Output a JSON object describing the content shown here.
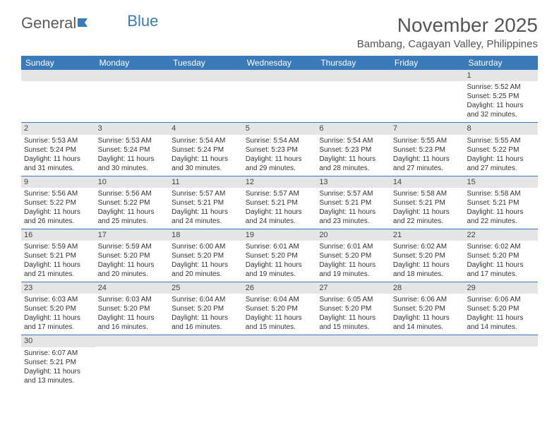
{
  "brand": {
    "part1": "General",
    "part2": "Blue"
  },
  "title": "November 2025",
  "location": "Bambang, Cagayan Valley, Philippines",
  "colors": {
    "header_bg": "#3a7ab8",
    "daynum_bg": "#e5e5e5",
    "border": "#3a7ab8",
    "text": "#333333",
    "title_text": "#555555"
  },
  "dayHeaders": [
    "Sunday",
    "Monday",
    "Tuesday",
    "Wednesday",
    "Thursday",
    "Friday",
    "Saturday"
  ],
  "weeks": [
    [
      {
        "n": "",
        "sr": "",
        "ss": "",
        "dl": ""
      },
      {
        "n": "",
        "sr": "",
        "ss": "",
        "dl": ""
      },
      {
        "n": "",
        "sr": "",
        "ss": "",
        "dl": ""
      },
      {
        "n": "",
        "sr": "",
        "ss": "",
        "dl": ""
      },
      {
        "n": "",
        "sr": "",
        "ss": "",
        "dl": ""
      },
      {
        "n": "",
        "sr": "",
        "ss": "",
        "dl": ""
      },
      {
        "n": "1",
        "sr": "Sunrise: 5:52 AM",
        "ss": "Sunset: 5:25 PM",
        "dl": "Daylight: 11 hours and 32 minutes."
      }
    ],
    [
      {
        "n": "2",
        "sr": "Sunrise: 5:53 AM",
        "ss": "Sunset: 5:24 PM",
        "dl": "Daylight: 11 hours and 31 minutes."
      },
      {
        "n": "3",
        "sr": "Sunrise: 5:53 AM",
        "ss": "Sunset: 5:24 PM",
        "dl": "Daylight: 11 hours and 30 minutes."
      },
      {
        "n": "4",
        "sr": "Sunrise: 5:54 AM",
        "ss": "Sunset: 5:24 PM",
        "dl": "Daylight: 11 hours and 30 minutes."
      },
      {
        "n": "5",
        "sr": "Sunrise: 5:54 AM",
        "ss": "Sunset: 5:23 PM",
        "dl": "Daylight: 11 hours and 29 minutes."
      },
      {
        "n": "6",
        "sr": "Sunrise: 5:54 AM",
        "ss": "Sunset: 5:23 PM",
        "dl": "Daylight: 11 hours and 28 minutes."
      },
      {
        "n": "7",
        "sr": "Sunrise: 5:55 AM",
        "ss": "Sunset: 5:23 PM",
        "dl": "Daylight: 11 hours and 27 minutes."
      },
      {
        "n": "8",
        "sr": "Sunrise: 5:55 AM",
        "ss": "Sunset: 5:22 PM",
        "dl": "Daylight: 11 hours and 27 minutes."
      }
    ],
    [
      {
        "n": "9",
        "sr": "Sunrise: 5:56 AM",
        "ss": "Sunset: 5:22 PM",
        "dl": "Daylight: 11 hours and 26 minutes."
      },
      {
        "n": "10",
        "sr": "Sunrise: 5:56 AM",
        "ss": "Sunset: 5:22 PM",
        "dl": "Daylight: 11 hours and 25 minutes."
      },
      {
        "n": "11",
        "sr": "Sunrise: 5:57 AM",
        "ss": "Sunset: 5:21 PM",
        "dl": "Daylight: 11 hours and 24 minutes."
      },
      {
        "n": "12",
        "sr": "Sunrise: 5:57 AM",
        "ss": "Sunset: 5:21 PM",
        "dl": "Daylight: 11 hours and 24 minutes."
      },
      {
        "n": "13",
        "sr": "Sunrise: 5:57 AM",
        "ss": "Sunset: 5:21 PM",
        "dl": "Daylight: 11 hours and 23 minutes."
      },
      {
        "n": "14",
        "sr": "Sunrise: 5:58 AM",
        "ss": "Sunset: 5:21 PM",
        "dl": "Daylight: 11 hours and 22 minutes."
      },
      {
        "n": "15",
        "sr": "Sunrise: 5:58 AM",
        "ss": "Sunset: 5:21 PM",
        "dl": "Daylight: 11 hours and 22 minutes."
      }
    ],
    [
      {
        "n": "16",
        "sr": "Sunrise: 5:59 AM",
        "ss": "Sunset: 5:21 PM",
        "dl": "Daylight: 11 hours and 21 minutes."
      },
      {
        "n": "17",
        "sr": "Sunrise: 5:59 AM",
        "ss": "Sunset: 5:20 PM",
        "dl": "Daylight: 11 hours and 20 minutes."
      },
      {
        "n": "18",
        "sr": "Sunrise: 6:00 AM",
        "ss": "Sunset: 5:20 PM",
        "dl": "Daylight: 11 hours and 20 minutes."
      },
      {
        "n": "19",
        "sr": "Sunrise: 6:01 AM",
        "ss": "Sunset: 5:20 PM",
        "dl": "Daylight: 11 hours and 19 minutes."
      },
      {
        "n": "20",
        "sr": "Sunrise: 6:01 AM",
        "ss": "Sunset: 5:20 PM",
        "dl": "Daylight: 11 hours and 19 minutes."
      },
      {
        "n": "21",
        "sr": "Sunrise: 6:02 AM",
        "ss": "Sunset: 5:20 PM",
        "dl": "Daylight: 11 hours and 18 minutes."
      },
      {
        "n": "22",
        "sr": "Sunrise: 6:02 AM",
        "ss": "Sunset: 5:20 PM",
        "dl": "Daylight: 11 hours and 17 minutes."
      }
    ],
    [
      {
        "n": "23",
        "sr": "Sunrise: 6:03 AM",
        "ss": "Sunset: 5:20 PM",
        "dl": "Daylight: 11 hours and 17 minutes."
      },
      {
        "n": "24",
        "sr": "Sunrise: 6:03 AM",
        "ss": "Sunset: 5:20 PM",
        "dl": "Daylight: 11 hours and 16 minutes."
      },
      {
        "n": "25",
        "sr": "Sunrise: 6:04 AM",
        "ss": "Sunset: 5:20 PM",
        "dl": "Daylight: 11 hours and 16 minutes."
      },
      {
        "n": "26",
        "sr": "Sunrise: 6:04 AM",
        "ss": "Sunset: 5:20 PM",
        "dl": "Daylight: 11 hours and 15 minutes."
      },
      {
        "n": "27",
        "sr": "Sunrise: 6:05 AM",
        "ss": "Sunset: 5:20 PM",
        "dl": "Daylight: 11 hours and 15 minutes."
      },
      {
        "n": "28",
        "sr": "Sunrise: 6:06 AM",
        "ss": "Sunset: 5:20 PM",
        "dl": "Daylight: 11 hours and 14 minutes."
      },
      {
        "n": "29",
        "sr": "Sunrise: 6:06 AM",
        "ss": "Sunset: 5:20 PM",
        "dl": "Daylight: 11 hours and 14 minutes."
      }
    ],
    [
      {
        "n": "30",
        "sr": "Sunrise: 6:07 AM",
        "ss": "Sunset: 5:21 PM",
        "dl": "Daylight: 11 hours and 13 minutes."
      },
      {
        "n": "",
        "sr": "",
        "ss": "",
        "dl": ""
      },
      {
        "n": "",
        "sr": "",
        "ss": "",
        "dl": ""
      },
      {
        "n": "",
        "sr": "",
        "ss": "",
        "dl": ""
      },
      {
        "n": "",
        "sr": "",
        "ss": "",
        "dl": ""
      },
      {
        "n": "",
        "sr": "",
        "ss": "",
        "dl": ""
      },
      {
        "n": "",
        "sr": "",
        "ss": "",
        "dl": ""
      }
    ]
  ]
}
